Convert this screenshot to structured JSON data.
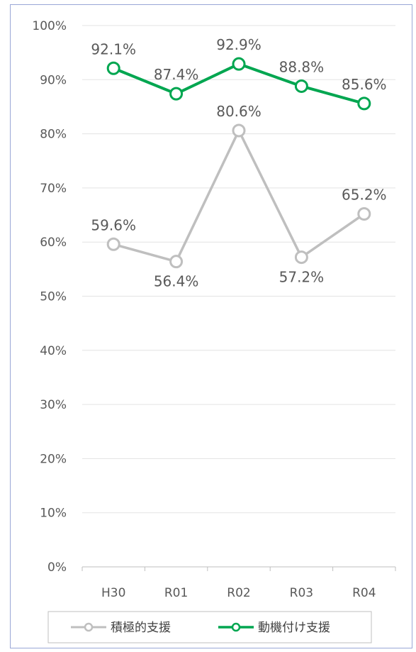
{
  "chart_data": {
    "type": "line",
    "categories": [
      "H30",
      "R01",
      "R02",
      "R03",
      "R04"
    ],
    "ylim": [
      0,
      100
    ],
    "y_ticks": [
      "0%",
      "10%",
      "20%",
      "30%",
      "40%",
      "50%",
      "60%",
      "70%",
      "80%",
      "90%",
      "100%"
    ],
    "grid": true,
    "legend_position": "bottom",
    "series": [
      {
        "name": "積極的支援",
        "color": "#bfbfbf",
        "values": [
          59.6,
          56.4,
          80.6,
          57.2,
          65.2
        ],
        "labels": [
          "59.6%",
          "56.4%",
          "80.6%",
          "57.2%",
          "65.2%"
        ],
        "label_pos": [
          "above",
          "below",
          "above",
          "below",
          "above"
        ]
      },
      {
        "name": "動機付け支援",
        "color": "#00a650",
        "values": [
          92.1,
          87.4,
          92.9,
          88.8,
          85.6
        ],
        "labels": [
          "92.1%",
          "87.4%",
          "92.9%",
          "88.8%",
          "85.6%"
        ],
        "label_pos": [
          "above",
          "above",
          "above",
          "above",
          "above"
        ]
      }
    ]
  }
}
